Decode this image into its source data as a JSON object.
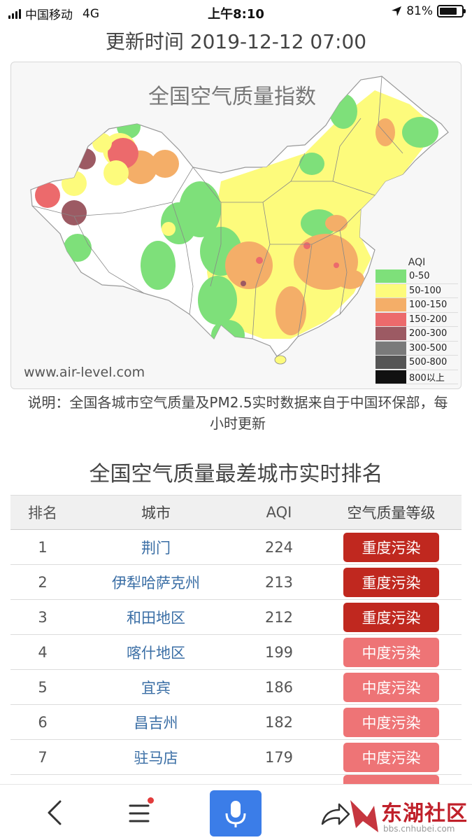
{
  "status_bar": {
    "carrier": "中国移动",
    "network": "4G",
    "time": "上午8:10",
    "battery_percent": "81%",
    "battery_level": 0.81
  },
  "header": {
    "update_time": "更新时间 2019-12-12 07:00"
  },
  "map": {
    "title": "全国空气质量指数",
    "site": "www.air-level.com",
    "legend_title": "AQI",
    "legend": [
      {
        "label": "0-50",
        "color": "#7ee07a"
      },
      {
        "label": "50-100",
        "color": "#fdfb7c"
      },
      {
        "label": "100-150",
        "color": "#f4ae68"
      },
      {
        "label": "150-200",
        "color": "#ec6a6c"
      },
      {
        "label": "200-300",
        "color": "#9c5a63"
      },
      {
        "label": "300-500",
        "color": "#7a7a7a"
      },
      {
        "label": "500-800",
        "color": "#555555"
      },
      {
        "label": "800以上",
        "color": "#111111"
      }
    ]
  },
  "note": "说明：全国各城市空气质量及PM2.5实时数据来自于中国环保部，每小时更新",
  "ranking": {
    "title": "全国空气质量最差城市实时排名",
    "columns": [
      "排名",
      "城市",
      "AQI",
      "空气质量等级"
    ],
    "rows": [
      {
        "rank": "1",
        "city": "荆门",
        "aqi": "224",
        "level": "重度污染",
        "color": "#c0281f"
      },
      {
        "rank": "2",
        "city": "伊犁哈萨克州",
        "aqi": "213",
        "level": "重度污染",
        "color": "#c0281f"
      },
      {
        "rank": "3",
        "city": "和田地区",
        "aqi": "212",
        "level": "重度污染",
        "color": "#c0281f"
      },
      {
        "rank": "4",
        "city": "喀什地区",
        "aqi": "199",
        "level": "中度污染",
        "color": "#ee7476"
      },
      {
        "rank": "5",
        "city": "宜宾",
        "aqi": "186",
        "level": "中度污染",
        "color": "#ee7476"
      },
      {
        "rank": "6",
        "city": "昌吉州",
        "aqi": "182",
        "level": "中度污染",
        "color": "#ee7476"
      },
      {
        "rank": "7",
        "city": "驻马店",
        "aqi": "179",
        "level": "中度污染",
        "color": "#ee7476"
      }
    ]
  },
  "bottom_bar": {
    "watermark": "东湖社区",
    "watermark_url": "bbs.cnhubei.com",
    "icons": [
      "back-icon",
      "menu-icon",
      "microphone-icon",
      "share-icon"
    ]
  }
}
